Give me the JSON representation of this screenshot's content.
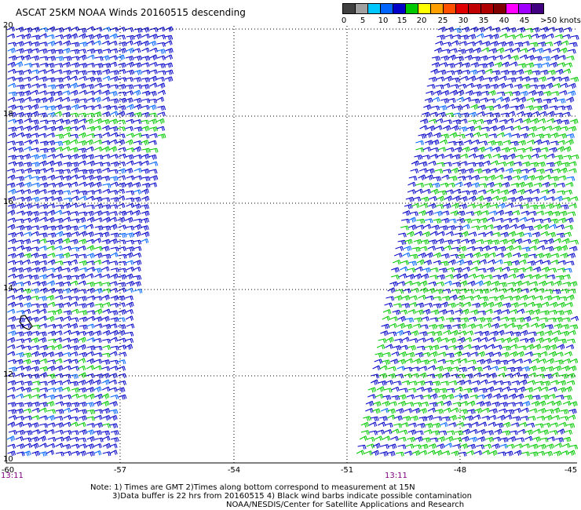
{
  "title": "ASCAT 25KM NOAA Winds 20160515 descending",
  "legend": {
    "labels": [
      "0",
      "5",
      "10",
      "15",
      "20",
      "25",
      "30",
      "35",
      "40",
      "45",
      ">50 knots"
    ],
    "colors": [
      "#404040",
      "#a0a0a0",
      "#00c8ff",
      "#0064ff",
      "#0000c8",
      "#00c800",
      "#ffff00",
      "#ffa000",
      "#ff5000",
      "#e00000",
      "#c00000",
      "#b00000",
      "#800000",
      "#ff00ff",
      "#a000ff",
      "#400080"
    ]
  },
  "axes": {
    "lat_labels": [
      "20",
      "18",
      "16",
      "14",
      "12",
      "10"
    ],
    "lon_labels": [
      "-60",
      "-57",
      "-54",
      "-51",
      "-48",
      "-45"
    ]
  },
  "times": [
    "13:11",
    "13:11"
  ],
  "notes": [
    "Note: 1) Times are GMT 2)Times along bottom correspond to measurement at 15N",
    "3)Data buffer is 22 hrs from 20160515 4) Black wind barbs indicate possible contamination",
    "NOAA/NESDIS/Center for Satellite Applications and Research"
  ],
  "barb_colors": {
    "blue": "#0000c8",
    "light_blue": "#0064ff",
    "green": "#00c800"
  }
}
